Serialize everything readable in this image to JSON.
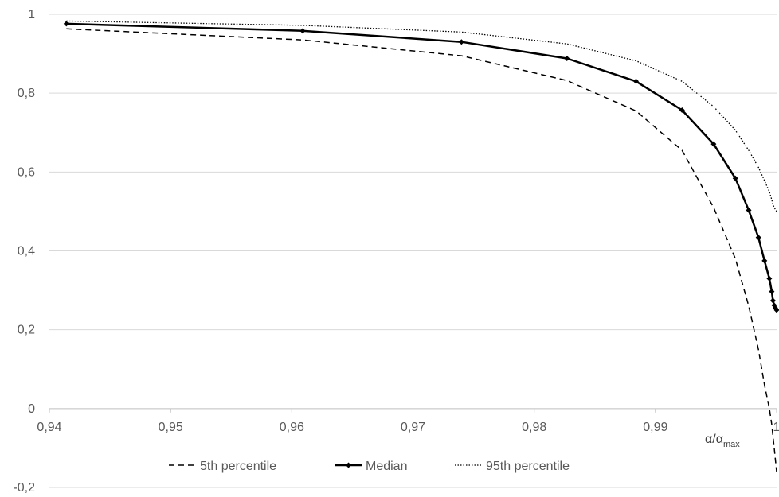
{
  "chart_data": {
    "type": "line",
    "title": "",
    "xlabel": {
      "base": "α/α",
      "subscript": "max"
    },
    "ylabel": "",
    "xlim": [
      0.94,
      1.0
    ],
    "ylim": [
      -0.2,
      1.0
    ],
    "x_ticks": [
      "0,94",
      "0,95",
      "0,96",
      "0,97",
      "0,98",
      "0,99",
      "1"
    ],
    "x_tick_values": [
      0.94,
      0.95,
      0.96,
      0.97,
      0.98,
      0.99,
      1.0
    ],
    "y_ticks": [
      "-0,2",
      "0",
      "0,2",
      "0,4",
      "0,6",
      "0,8",
      "1"
    ],
    "y_tick_values": [
      -0.2,
      0,
      0.2,
      0.4,
      0.6,
      0.8,
      1.0
    ],
    "grid": "horizontal",
    "legend_position": "bottom",
    "series": [
      {
        "name": "5th percentile",
        "style": "dashed",
        "marker": false,
        "color": "#000000",
        "x": [
          0.9414,
          0.9609,
          0.974,
          0.9827,
          0.9884,
          0.9922,
          0.9948,
          0.9966,
          0.9977,
          0.9985,
          0.999,
          0.9994,
          0.9996,
          0.9997,
          0.9998,
          0.9999,
          1.0
        ],
        "y": [
          0.963,
          0.935,
          0.895,
          0.832,
          0.755,
          0.655,
          0.51,
          0.38,
          0.26,
          0.15,
          0.06,
          0.0,
          -0.04,
          -0.07,
          -0.1,
          -0.13,
          -0.16
        ]
      },
      {
        "name": "Median",
        "style": "solid",
        "marker": true,
        "color": "#000000",
        "x": [
          0.9414,
          0.9609,
          0.974,
          0.9827,
          0.9884,
          0.9922,
          0.9948,
          0.9966,
          0.9977,
          0.9985,
          0.999,
          0.9994,
          0.9996,
          0.9997,
          0.9998,
          0.9999,
          1.0
        ],
        "y": [
          0.976,
          0.958,
          0.93,
          0.888,
          0.83,
          0.757,
          0.671,
          0.584,
          0.503,
          0.434,
          0.375,
          0.33,
          0.297,
          0.274,
          0.262,
          0.255,
          0.25
        ]
      },
      {
        "name": "95th percentile",
        "style": "dotted",
        "marker": false,
        "color": "#000000",
        "x": [
          0.9414,
          0.9609,
          0.974,
          0.9827,
          0.9884,
          0.9922,
          0.9948,
          0.9966,
          0.9977,
          0.9985,
          0.999,
          0.9994,
          0.9996,
          0.9997,
          0.9998,
          0.9999,
          1.0
        ],
        "y": [
          0.983,
          0.972,
          0.955,
          0.925,
          0.882,
          0.83,
          0.766,
          0.706,
          0.655,
          0.612,
          0.578,
          0.55,
          0.53,
          0.518,
          0.51,
          0.505,
          0.5
        ]
      }
    ]
  }
}
